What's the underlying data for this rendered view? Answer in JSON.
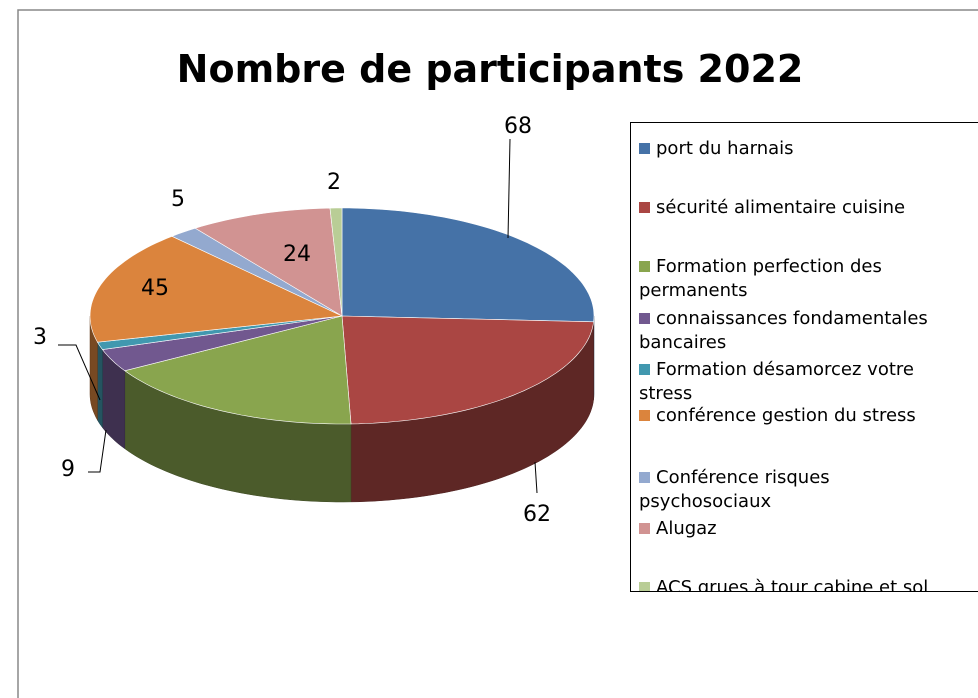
{
  "chart_data": {
    "type": "pie3d",
    "title": "Nombre de participants 2022",
    "categories": [
      "port du harnais",
      "sécurité alimentaire cuisine",
      "Formation perfection des permanents",
      "connaissances fondamentales bancaires",
      "Formation désamorcez votre stress",
      "conférence gestion du stress",
      "Conférence risques psychosociaux",
      "Alugaz",
      "ACS grues à tour cabine et sol"
    ],
    "values": [
      68,
      62,
      45,
      9,
      3,
      45,
      5,
      24,
      2
    ],
    "value_labels": [
      "68",
      "62",
      null,
      "9",
      "3",
      "45",
      "5",
      "24",
      "2"
    ],
    "colors": [
      "#4572a7",
      "#aa4643",
      "#89a54e",
      "#71588f",
      "#4198af",
      "#db843d",
      "#93a9cf",
      "#d19392",
      "#b9cd96"
    ],
    "legend": "right"
  }
}
